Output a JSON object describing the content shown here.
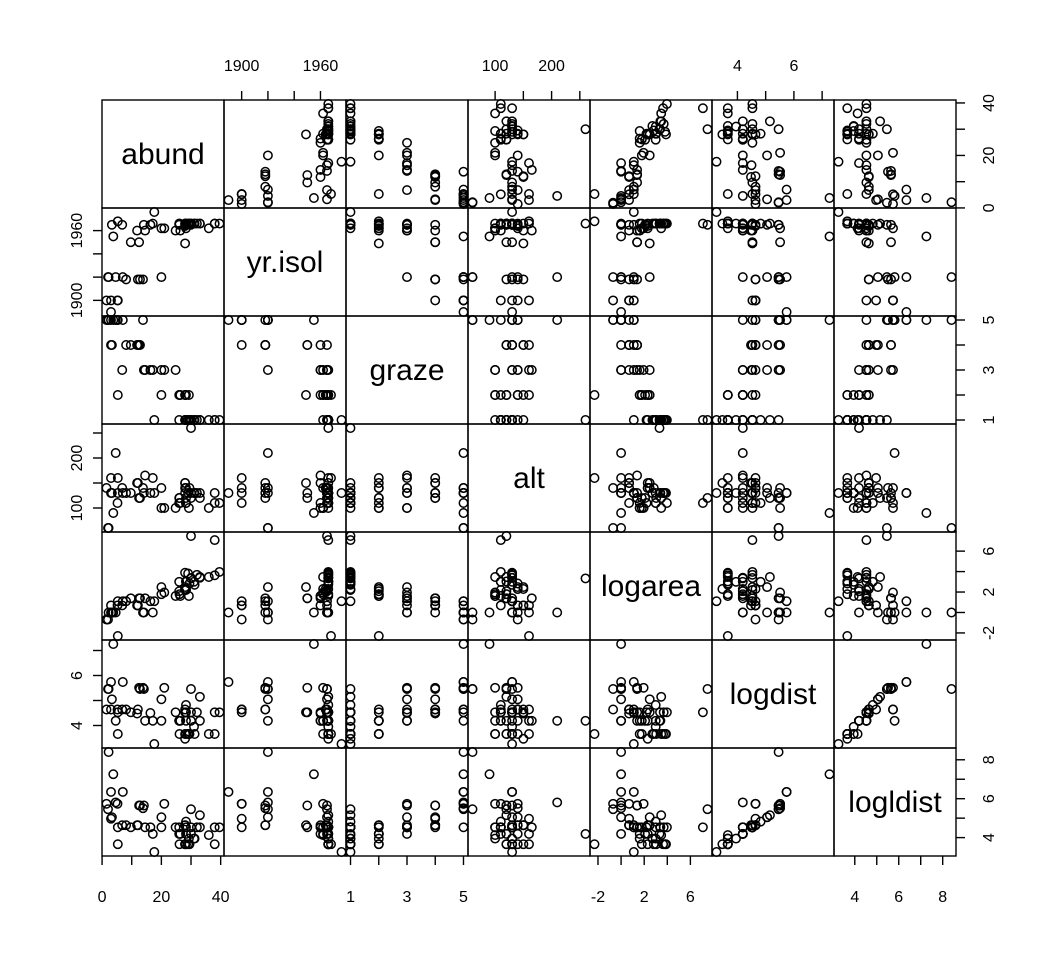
{
  "figure": {
    "background": "#ffffff",
    "foreground": "#000000",
    "point_shape": "open-circle",
    "n_observations": 56
  },
  "chart_data": {
    "type": "scatter_matrix",
    "title": "",
    "grid": "off",
    "legend": "none",
    "expansion_factor": 0.04,
    "variables": [
      {
        "key": "abund",
        "label": "abund",
        "x_axis_side": "bottom",
        "y_axis_side": "right",
        "ticks": [
          {
            "v": 0,
            "label": "0"
          },
          {
            "v": 10,
            "label": ""
          },
          {
            "v": 20,
            "label": "20"
          },
          {
            "v": 30,
            "label": ""
          },
          {
            "v": 40,
            "label": "40"
          }
        ]
      },
      {
        "key": "yr_isol",
        "label": "yr.isol",
        "x_axis_side": "top",
        "y_axis_side": "left",
        "ticks": [
          {
            "v": 1900,
            "label": "1900"
          },
          {
            "v": 1920,
            "label": ""
          },
          {
            "v": 1940,
            "label": ""
          },
          {
            "v": 1960,
            "label": "1960"
          }
        ]
      },
      {
        "key": "graze",
        "label": "graze",
        "x_axis_side": "bottom",
        "y_axis_side": "right",
        "ticks": [
          {
            "v": 1,
            "label": "1"
          },
          {
            "v": 2,
            "label": ""
          },
          {
            "v": 3,
            "label": "3"
          },
          {
            "v": 4,
            "label": ""
          },
          {
            "v": 5,
            "label": "5"
          }
        ]
      },
      {
        "key": "alt",
        "label": "alt",
        "x_axis_side": "top",
        "y_axis_side": "left",
        "ticks": [
          {
            "v": 100,
            "label": "100"
          },
          {
            "v": 150,
            "label": ""
          },
          {
            "v": 200,
            "label": "200"
          },
          {
            "v": 250,
            "label": ""
          }
        ]
      },
      {
        "key": "logarea",
        "label": "logarea",
        "x_axis_side": "bottom",
        "y_axis_side": "right",
        "ticks": [
          {
            "v": -2,
            "label": "-2"
          },
          {
            "v": 0,
            "label": ""
          },
          {
            "v": 2,
            "label": "2"
          },
          {
            "v": 4,
            "label": ""
          },
          {
            "v": 6,
            "label": "6"
          }
        ]
      },
      {
        "key": "logdist",
        "label": "logdist",
        "x_axis_side": "top",
        "y_axis_side": "left",
        "ticks": [
          {
            "v": 4,
            "label": "4"
          },
          {
            "v": 5,
            "label": ""
          },
          {
            "v": 6,
            "label": "6"
          },
          {
            "v": 7,
            "label": ""
          }
        ]
      },
      {
        "key": "logldist",
        "label": "logldist",
        "x_axis_side": "bottom",
        "y_axis_side": "right",
        "ticks": [
          {
            "v": 4,
            "label": "4"
          },
          {
            "v": 5,
            "label": ""
          },
          {
            "v": 6,
            "label": "6"
          },
          {
            "v": 7,
            "label": ""
          },
          {
            "v": 8,
            "label": "8"
          }
        ]
      }
    ],
    "observations": {
      "columns": [
        "abund",
        "yr_isol",
        "graze",
        "alt",
        "logarea",
        "logdist",
        "logldist"
      ],
      "rows": [
        [
          5.3,
          1968,
          2,
          160,
          -2.3,
          3.66,
          3.66
        ],
        [
          2.0,
          1920,
          5,
          60,
          -0.69,
          5.46,
          5.46
        ],
        [
          1.5,
          1900,
          5,
          140,
          -0.69,
          4.64,
          5.74
        ],
        [
          17.1,
          1966,
          3,
          160,
          0.0,
          4.19,
          4.19
        ],
        [
          13.8,
          1918,
          5,
          140,
          0.0,
          5.51,
          5.51
        ],
        [
          14.1,
          1965,
          3,
          130,
          0.0,
          5.46,
          5.65
        ],
        [
          3.8,
          1955,
          5,
          90,
          0.0,
          7.26,
          7.26
        ],
        [
          2.2,
          1920,
          5,
          60,
          0.0,
          5.46,
          8.4
        ],
        [
          3.3,
          1965,
          4,
          130,
          0.0,
          5.05,
          5.05
        ],
        [
          3.0,
          1890,
          5,
          130,
          0.0,
          5.74,
          6.35
        ],
        [
          4.6,
          1920,
          5,
          210,
          0.0,
          4.19,
          5.81
        ],
        [
          3.0,
          1900,
          4,
          160,
          0.69,
          4.64,
          4.97
        ],
        [
          5.2,
          1900,
          5,
          110,
          0.69,
          4.64,
          5.74
        ],
        [
          11.8,
          1960,
          4,
          150,
          0.69,
          4.48,
          4.64
        ],
        [
          12.1,
          1918,
          4,
          150,
          0.69,
          4.64,
          4.64
        ],
        [
          6.8,
          1965,
          3,
          140,
          0.69,
          4.64,
          4.64
        ],
        [
          16.3,
          1965,
          3,
          130,
          1.1,
          4.5,
          4.53
        ],
        [
          5.3,
          1900,
          5,
          130,
          1.1,
          4.53,
          4.53
        ],
        [
          17.6,
          1976,
          1,
          130,
          1.1,
          3.26,
          3.26
        ],
        [
          8.1,
          1918,
          4,
          130,
          1.1,
          4.64,
          4.64
        ],
        [
          7.0,
          1920,
          5,
          130,
          1.1,
          5.74,
          6.35
        ],
        [
          14.5,
          1960,
          3,
          165,
          1.39,
          4.19,
          4.53
        ],
        [
          12.5,
          1950,
          4,
          120,
          1.39,
          5.51,
          5.65
        ],
        [
          9.7,
          1950,
          4,
          130,
          1.39,
          4.53,
          4.53
        ],
        [
          12.8,
          1918,
          4,
          120,
          1.39,
          5.46,
          5.65
        ],
        [
          29.3,
          1966,
          2,
          100,
          1.61,
          3.66,
          3.95
        ],
        [
          24.8,
          1960,
          3,
          100,
          1.61,
          4.53,
          4.53
        ],
        [
          26.4,
          1960,
          2,
          110,
          1.61,
          4.19,
          4.19
        ],
        [
          26.1,
          1966,
          2,
          120,
          1.79,
          3.66,
          3.66
        ],
        [
          20.0,
          1962,
          2,
          100,
          1.79,
          4.19,
          4.53
        ],
        [
          21.0,
          1962,
          3,
          100,
          1.95,
          5.51,
          5.74
        ],
        [
          26.0,
          1965,
          2,
          120,
          2.08,
          4.19,
          4.19
        ],
        [
          28.3,
          1965,
          1,
          110,
          2.2,
          4.53,
          4.53
        ],
        [
          28.0,
          1966,
          1,
          150,
          2.3,
          3.47,
          3.66
        ],
        [
          28.3,
          1962,
          2,
          140,
          2.3,
          4.19,
          4.19
        ],
        [
          28.0,
          1964,
          2,
          140,
          2.3,
          4.64,
          4.64
        ],
        [
          28.0,
          1949,
          2,
          150,
          2.48,
          4.53,
          4.64
        ],
        [
          20.0,
          1920,
          3,
          140,
          2.48,
          5.05,
          5.05
        ],
        [
          31.2,
          1966,
          1,
          130,
          2.71,
          3.66,
          3.95
        ],
        [
          29.5,
          1966,
          1,
          140,
          2.83,
          3.66,
          3.66
        ],
        [
          31.0,
          1966,
          1,
          130,
          3.0,
          3.95,
          3.95
        ],
        [
          28.3,
          1966,
          1,
          110,
          3.0,
          4.82,
          4.82
        ],
        [
          26.0,
          1966,
          1,
          110,
          3.0,
          4.19,
          4.53
        ],
        [
          28.3,
          1966,
          1,
          120,
          3.04,
          3.66,
          3.66
        ],
        [
          30.0,
          1966,
          1,
          260,
          3.33,
          4.19,
          4.19
        ],
        [
          30.0,
          1966,
          1,
          130,
          3.37,
          4.53,
          4.53
        ],
        [
          33.0,
          1966,
          1,
          130,
          3.4,
          4.19,
          4.53
        ],
        [
          36.0,
          1962,
          1,
          100,
          3.47,
          3.66,
          4.13
        ],
        [
          33.0,
          1966,
          1,
          120,
          3.47,
          5.15,
          5.15
        ],
        [
          38.0,
          1966,
          1,
          130,
          3.64,
          3.66,
          3.66
        ],
        [
          32.0,
          1966,
          1,
          130,
          3.69,
          4.53,
          4.53
        ],
        [
          29.0,
          1966,
          1,
          130,
          3.81,
          3.66,
          3.66
        ],
        [
          28.0,
          1966,
          1,
          130,
          3.89,
          3.66,
          3.66
        ],
        [
          39.6,
          1966,
          1,
          110,
          3.97,
          4.53,
          4.53
        ],
        [
          38.0,
          1966,
          1,
          110,
          7.08,
          4.53,
          4.53
        ],
        [
          30.0,
          1965,
          1,
          120,
          7.48,
          5.46,
          5.46
        ]
      ]
    }
  }
}
